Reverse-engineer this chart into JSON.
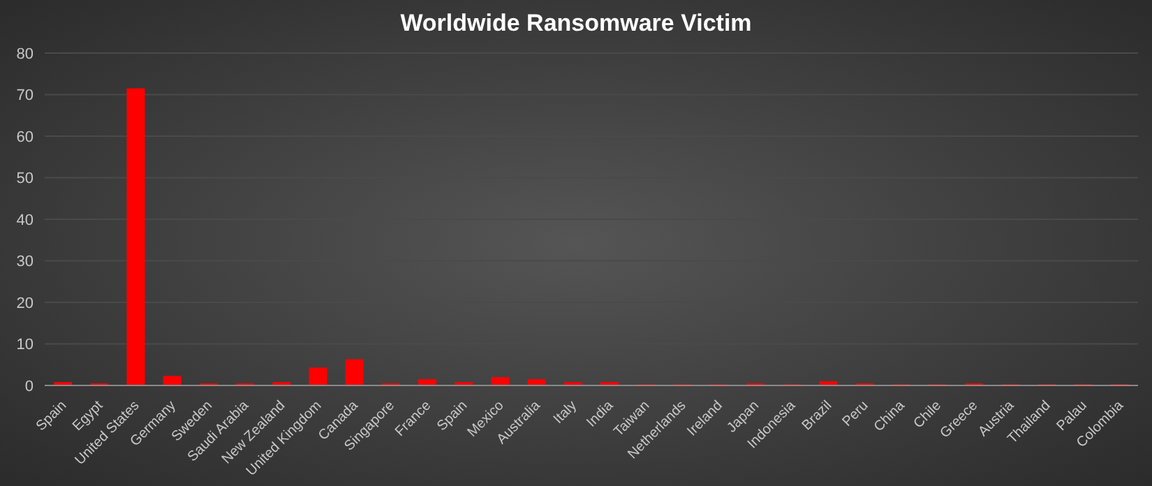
{
  "chart_data": {
    "type": "bar",
    "title": "Worldwide Ransomware Victim",
    "categories": [
      "Spain",
      "Egypt",
      "United States",
      "Germany",
      "Sweden",
      "Saudi Arabia",
      "New Zealand",
      "United Kingdom",
      "Canada",
      "Singapore",
      "France",
      "Spain",
      "Mexico",
      "Australia",
      "Italy",
      "India",
      "Taiwan",
      "Netherlands",
      "Ireland",
      "Japan",
      "Indonesia",
      "Brazil",
      "Peru",
      "China",
      "Chile",
      "Greece",
      "Austria",
      "Thailand",
      "Palau",
      "Colombia"
    ],
    "values": [
      0.8,
      0.5,
      71.5,
      2.3,
      0.5,
      0.5,
      0.8,
      4.3,
      6.3,
      0.5,
      1.5,
      0.8,
      2,
      1.5,
      0.8,
      0.8,
      0.3,
      0.3,
      0.3,
      0.5,
      0.3,
      1,
      0.5,
      0.3,
      0.3,
      0.5,
      0.3,
      0.3,
      0.3,
      0.3
    ],
    "color": "#ff0000",
    "ylim": [
      0,
      80
    ],
    "yticks": [
      0,
      10,
      20,
      30,
      40,
      50,
      60,
      70,
      80
    ],
    "grid": "y"
  }
}
